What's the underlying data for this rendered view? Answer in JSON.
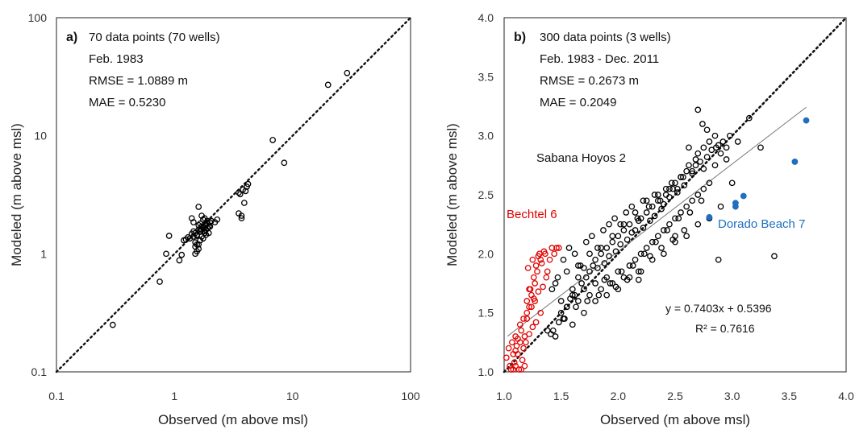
{
  "chart_data": [
    {
      "type": "scatter",
      "scale": "log-log",
      "panel_label": "a)",
      "xlabel": "Observed (m above msl)",
      "ylabel": "Modeled (m above msl)",
      "xlim": [
        0.1,
        100
      ],
      "ylim": [
        0.1,
        100
      ],
      "xticks": [
        "0.1",
        "1",
        "10",
        "100"
      ],
      "yticks": [
        "0.1",
        "1",
        "10",
        "100"
      ],
      "annotations": [
        "70 data points (70 wells)",
        "Feb. 1983",
        "RMSE = 1.0889 m",
        "MAE = 0.5230"
      ],
      "one_to_one_line": true,
      "series": [
        {
          "color": "#000000",
          "x": [
            0.3,
            0.75,
            0.85,
            0.9,
            1.1,
            1.15,
            1.2,
            1.25,
            1.3,
            1.35,
            1.4,
            1.45,
            1.5,
            1.55,
            1.6,
            1.65,
            1.7,
            1.75,
            1.8,
            1.85,
            1.9,
            1.95,
            2.0,
            2.05,
            1.5,
            1.55,
            1.6,
            1.65,
            1.7,
            1.75,
            1.8,
            1.85,
            1.9,
            1.95,
            2.0,
            1.4,
            1.45,
            1.5,
            1.55,
            1.6,
            1.65,
            1.7,
            1.75,
            1.8,
            1.85,
            1.5,
            1.6,
            1.7,
            1.8,
            1.9,
            2.2,
            2.3,
            1.6,
            1.65,
            3.5,
            3.7,
            3.6,
            3.8,
            4.0,
            4.2,
            3.9,
            4.1,
            3.7,
            3.5,
            6.8,
            8.5,
            20,
            29,
            1.45,
            1.55
          ],
          "y": [
            0.25,
            0.58,
            1.0,
            1.42,
            0.88,
            0.98,
            1.3,
            1.32,
            1.38,
            1.35,
            1.48,
            1.55,
            1.5,
            1.42,
            1.6,
            1.55,
            1.7,
            1.65,
            1.75,
            1.6,
            1.8,
            1.7,
            1.85,
            1.9,
            1.25,
            1.2,
            1.1,
            1.3,
            1.4,
            1.35,
            1.55,
            1.45,
            1.65,
            1.5,
            1.7,
            2.0,
            1.85,
            1.15,
            1.05,
            1.2,
            1.8,
            2.1,
            1.95,
            2.0,
            1.75,
            1.0,
            2.5,
            1.6,
            1.5,
            1.9,
            1.85,
            1.95,
            1.75,
            1.6,
            2.2,
            2.0,
            3.2,
            3.5,
            3.4,
            3.9,
            2.7,
            3.7,
            2.1,
            3.3,
            9.2,
            5.9,
            27,
            34,
            1.4,
            1.45
          ]
        }
      ]
    },
    {
      "type": "scatter",
      "panel_label": "b)",
      "xlabel": "Observed (m above msl)",
      "ylabel": "Modeled (m above msl)",
      "xlim": [
        1.0,
        4.0
      ],
      "ylim": [
        1.0,
        4.0
      ],
      "xticks": [
        "1.0",
        "1.5",
        "2.0",
        "2.5",
        "3.0",
        "3.5",
        "4.0"
      ],
      "yticks": [
        "1.0",
        "1.5",
        "2.0",
        "2.5",
        "3.0",
        "3.5",
        "4.0"
      ],
      "annotations": [
        "300 data points (3 wells)",
        "Feb. 1983 - Dec. 2011",
        "RMSE = 0.2673 m",
        "MAE = 0.2049"
      ],
      "one_to_one_line": true,
      "trendline": {
        "slope": 0.7403,
        "intercept": 0.5396,
        "x_range": [
          1.03,
          3.65
        ],
        "color": "#777777"
      },
      "equation": "y = 0.7403x + 0.5396",
      "r_squared": "R² = 0.7616",
      "series": [
        {
          "name": "Sabana Hoyos 2",
          "color": "#000000",
          "x": [
            1.38,
            1.41,
            1.45,
            1.48,
            1.5,
            1.52,
            1.55,
            1.58,
            1.6,
            1.62,
            1.65,
            1.68,
            1.7,
            1.72,
            1.75,
            1.78,
            1.8,
            1.82,
            1.85,
            1.88,
            1.9,
            1.92,
            1.95,
            1.98,
            2.0,
            2.02,
            2.05,
            2.08,
            2.1,
            2.12,
            2.15,
            2.18,
            2.2,
            2.22,
            2.25,
            2.28,
            2.3,
            2.32,
            2.35,
            2.38,
            2.4,
            2.42,
            2.45,
            2.48,
            2.5,
            2.52,
            2.55,
            2.58,
            2.6,
            2.62,
            2.65,
            2.68,
            2.7,
            2.72,
            2.75,
            2.78,
            2.8,
            2.82,
            2.85,
            2.88,
            2.9,
            2.92,
            2.95,
            2.98,
            3.0,
            1.5,
            1.55,
            1.6,
            1.65,
            1.7,
            1.75,
            1.8,
            1.85,
            1.9,
            1.95,
            2.0,
            2.05,
            2.1,
            2.15,
            2.2,
            2.25,
            2.3,
            2.35,
            2.4,
            2.45,
            2.5,
            2.55,
            2.6,
            2.65,
            2.7,
            2.75,
            2.8,
            1.45,
            1.55,
            1.65,
            1.75,
            1.85,
            1.95,
            2.05,
            2.15,
            2.25,
            2.35,
            2.45,
            2.55,
            2.65,
            2.75,
            2.85,
            2.95,
            1.6,
            1.7,
            1.8,
            1.9,
            2.0,
            2.1,
            2.2,
            2.3,
            2.4,
            2.5,
            2.6,
            2.7,
            2.8,
            2.9,
            3.05,
            3.15,
            3.25,
            3.37,
            2.88,
            2.7,
            2.74,
            2.78,
            2.62,
            2.68,
            1.42,
            1.47,
            1.52,
            1.57,
            1.62,
            1.67,
            1.72,
            1.77,
            1.82,
            1.87,
            1.92,
            1.97,
            2.02,
            2.07,
            2.12,
            2.17,
            2.22,
            2.27,
            2.32,
            2.37,
            2.42,
            2.47,
            2.52,
            2.57,
            1.43,
            1.53,
            1.63,
            1.73,
            1.83,
            1.93,
            2.03,
            2.13,
            2.23,
            2.33,
            2.43,
            2.53,
            2.63,
            2.73,
            1.88,
            1.98,
            2.08,
            2.18,
            2.28,
            2.38,
            2.48,
            2.58,
            2.18,
            2.5,
            2.86
          ],
          "y": [
            1.35,
            1.32,
            1.3,
            1.42,
            1.5,
            1.45,
            1.55,
            1.62,
            1.7,
            1.65,
            1.8,
            1.75,
            1.88,
            1.8,
            1.85,
            1.9,
            1.95,
            1.88,
            2.0,
            1.92,
            2.05,
            1.98,
            2.1,
            2.02,
            2.15,
            2.08,
            2.2,
            2.12,
            2.25,
            2.18,
            2.2,
            2.28,
            2.3,
            2.22,
            2.35,
            2.28,
            2.4,
            2.32,
            2.45,
            2.38,
            2.42,
            2.5,
            2.48,
            2.55,
            2.6,
            2.52,
            2.65,
            2.58,
            2.7,
            2.75,
            2.68,
            2.8,
            2.85,
            2.78,
            2.9,
            2.82,
            2.95,
            2.88,
            3.0,
            2.92,
            2.85,
            2.95,
            2.9,
            3.0,
            2.6,
            1.6,
            1.55,
            1.65,
            1.6,
            1.7,
            1.65,
            1.75,
            1.7,
            1.8,
            1.75,
            1.85,
            1.8,
            1.9,
            1.95,
            2.0,
            2.05,
            2.1,
            2.15,
            2.2,
            2.25,
            2.3,
            2.35,
            2.4,
            2.45,
            2.5,
            2.55,
            2.6,
            1.75,
            1.85,
            1.9,
            2.0,
            2.05,
            2.15,
            2.25,
            2.35,
            2.45,
            2.5,
            2.55,
            2.65,
            2.7,
            2.72,
            2.75,
            2.8,
            1.4,
            1.5,
            1.6,
            1.65,
            1.7,
            1.8,
            1.85,
            1.95,
            2.0,
            2.1,
            2.15,
            2.25,
            2.3,
            2.4,
            2.95,
            3.15,
            2.9,
            1.98,
            1.95,
            3.22,
            3.1,
            3.05,
            2.9,
            2.75,
            1.7,
            1.8,
            1.95,
            2.05,
            2.0,
            1.9,
            2.1,
            2.15,
            2.05,
            2.2,
            2.25,
            2.3,
            2.25,
            2.35,
            2.4,
            2.3,
            2.45,
            2.4,
            2.5,
            2.45,
            2.55,
            2.6,
            2.55,
            2.65,
            1.35,
            1.45,
            1.55,
            1.6,
            1.65,
            1.75,
            1.85,
            1.9,
            2.0,
            2.1,
            2.2,
            2.3,
            2.35,
            2.45,
            1.78,
            1.72,
            1.78,
            1.85,
            1.98,
            2.05,
            2.12,
            2.2,
            1.78,
            2.15,
            2.9
          ]
        },
        {
          "name": "Bechtel 6",
          "color": "#e00000",
          "x": [
            1.02,
            1.04,
            1.05,
            1.06,
            1.07,
            1.08,
            1.09,
            1.1,
            1.1,
            1.11,
            1.12,
            1.13,
            1.14,
            1.15,
            1.16,
            1.17,
            1.18,
            1.19,
            1.2,
            1.2,
            1.21,
            1.22,
            1.23,
            1.24,
            1.25,
            1.26,
            1.27,
            1.28,
            1.29,
            1.3,
            1.31,
            1.32,
            1.33,
            1.35,
            1.36,
            1.38,
            1.4,
            1.42,
            1.44,
            1.46,
            1.48,
            1.12,
            1.15,
            1.18,
            1.22,
            1.25,
            1.28,
            1.32,
            1.08,
            1.1,
            1.14,
            1.2,
            1.24,
            1.27,
            1.22,
            1.26,
            1.3,
            1.34,
            1.37,
            1.17
          ],
          "y": [
            1.12,
            1.2,
            1.05,
            1.02,
            1.25,
            1.15,
            1.08,
            1.3,
            1.18,
            1.22,
            1.28,
            1.02,
            1.4,
            1.35,
            1.1,
            1.45,
            1.3,
            1.25,
            1.6,
            1.5,
            1.88,
            1.55,
            1.7,
            1.65,
            1.95,
            1.8,
            1.75,
            1.9,
            1.85,
            1.98,
            2.0,
            1.95,
            1.92,
            2.02,
            2.0,
            1.85,
            1.95,
            2.05,
            2.0,
            2.05,
            2.05,
            1.15,
            1.02,
            1.05,
            1.32,
            1.38,
            1.42,
            1.5,
            1.02,
            1.05,
            1.25,
            1.45,
            1.55,
            1.6,
            1.7,
            1.62,
            1.68,
            1.72,
            1.8,
            1.2
          ]
        },
        {
          "name": "Dorado Beach 7",
          "color": "#1f6fbf",
          "marker": "filled",
          "x": [
            2.8,
            3.03,
            3.03,
            3.1,
            3.55,
            3.65
          ],
          "y": [
            2.31,
            2.4,
            2.43,
            2.49,
            2.78,
            3.13
          ]
        }
      ]
    }
  ]
}
